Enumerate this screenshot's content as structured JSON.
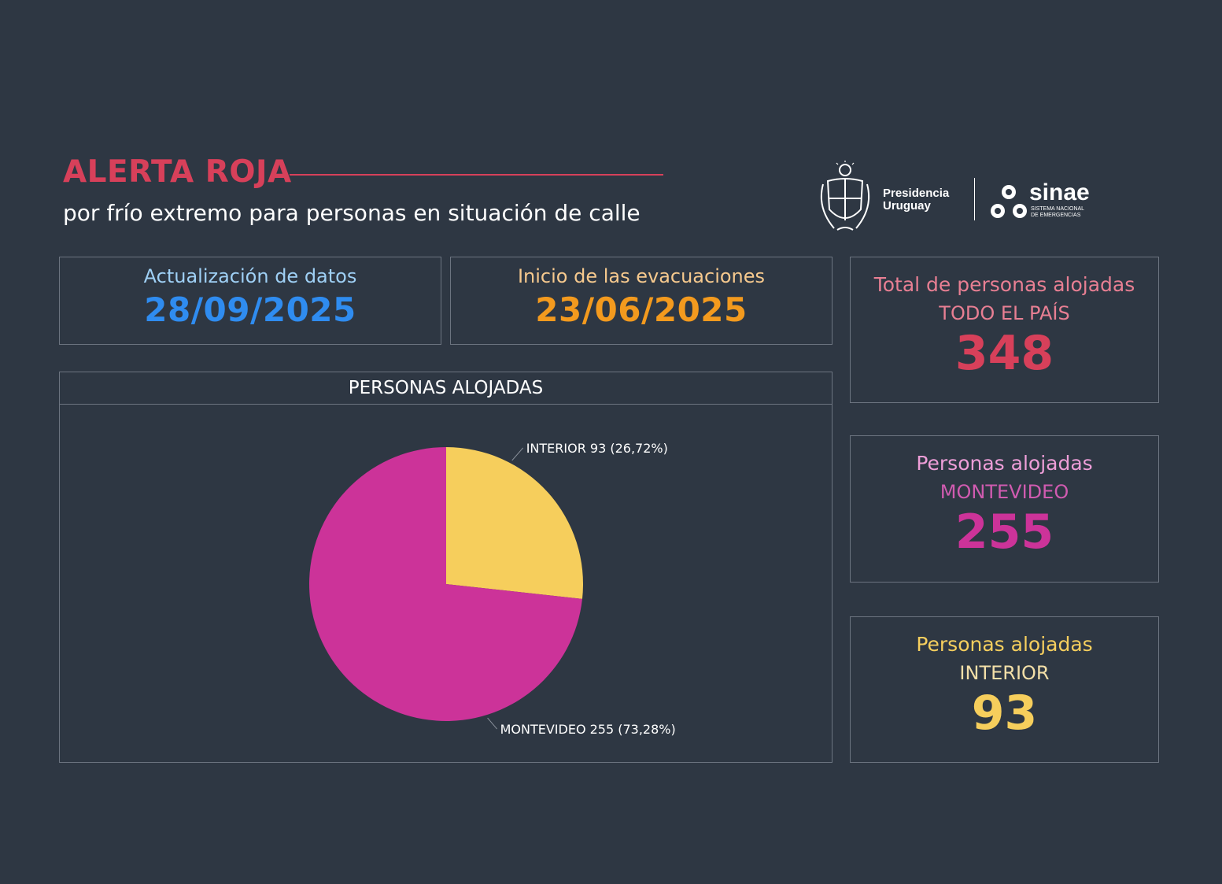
{
  "header": {
    "title": "ALERTA ROJA",
    "subtitle": "por frío extremo para personas en situación de calle"
  },
  "logos": {
    "presidencia_line1": "Presidencia",
    "presidencia_line2": "Uruguay",
    "sinae_name": "sinae",
    "sinae_line1": "SISTEMA NACIONAL",
    "sinae_line2": "DE EMERGENCIAS"
  },
  "update_card": {
    "label": "Actualización de datos",
    "value": "28/09/2025",
    "label_color": "#9fd0f5",
    "value_color": "#2f8cf0"
  },
  "evac_card": {
    "label": "Inicio de las evacuaciones",
    "value": "23/06/2025",
    "label_color": "#f6c98e",
    "value_color": "#f39a1e"
  },
  "total_card": {
    "label": "Total de personas alojadas",
    "sub": "TODO EL PAÍS",
    "value": "348",
    "label_color": "#e87f93",
    "value_color": "#d7405a"
  },
  "montevideo_card": {
    "label": "Personas alojadas",
    "sub": "MONTEVIDEO",
    "value": "255",
    "label_color": "#ee9ed8",
    "sub_color": "#d05bb0",
    "value_color": "#cc3399"
  },
  "interior_card": {
    "label": "Personas alojadas",
    "sub": "INTERIOR",
    "value": "93",
    "label_color": "#f6cf5e",
    "sub_color": "#f3dfa8",
    "value_color": "#f6ce5c"
  },
  "chart_panel": {
    "title": "PERSONAS ALOJADAS"
  },
  "chart_data": {
    "type": "pie",
    "title": "PERSONAS ALOJADAS",
    "slices": [
      {
        "name": "INTERIOR",
        "value": 93,
        "percent": 26.72,
        "label": "INTERIOR 93 (26,72%)",
        "color": "#f6ce5c"
      },
      {
        "name": "MONTEVIDEO",
        "value": 255,
        "percent": 73.28,
        "label": "MONTEVIDEO 255 (73,28%)",
        "color": "#cc3399"
      }
    ]
  }
}
